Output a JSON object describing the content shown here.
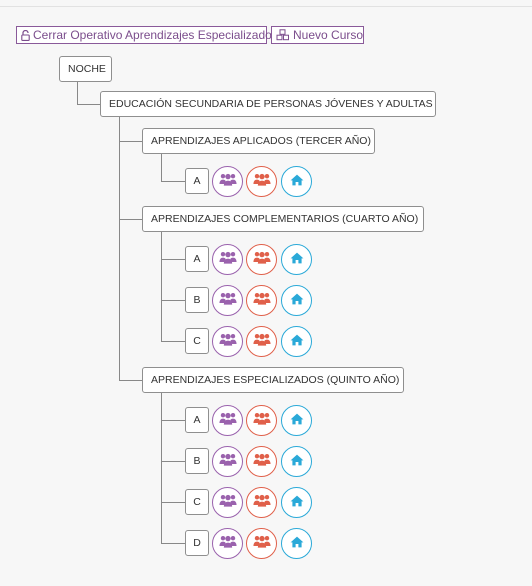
{
  "toolbar": {
    "close_label": "Cerrar Operativo Aprendizajes Especializados",
    "new_course_label": "Nuevo Curso"
  },
  "tree": {
    "shift": "NOCHE",
    "level": "EDUCACIÓN SECUNDARIA DE PERSONAS JÓVENES Y ADULTAS",
    "sections": [
      {
        "label": "APRENDIZAJES APLICADOS (TERCER AÑO)",
        "divisions": [
          "A"
        ]
      },
      {
        "label": "APRENDIZAJES COMPLEMENTARIOS (CUARTO AÑO)",
        "divisions": [
          "A",
          "B",
          "C"
        ]
      },
      {
        "label": "APRENDIZAJES ESPECIALIZADOS (QUINTO AÑO)",
        "divisions": [
          "A",
          "B",
          "C",
          "D"
        ]
      }
    ]
  },
  "icons": {
    "students": "users-icon",
    "teachers": "users-icon",
    "home": "home-icon"
  },
  "colors": {
    "accent": "#7b4d8c",
    "students": "#9a62ad",
    "teachers": "#e0604a",
    "home": "#2aa9d8"
  }
}
